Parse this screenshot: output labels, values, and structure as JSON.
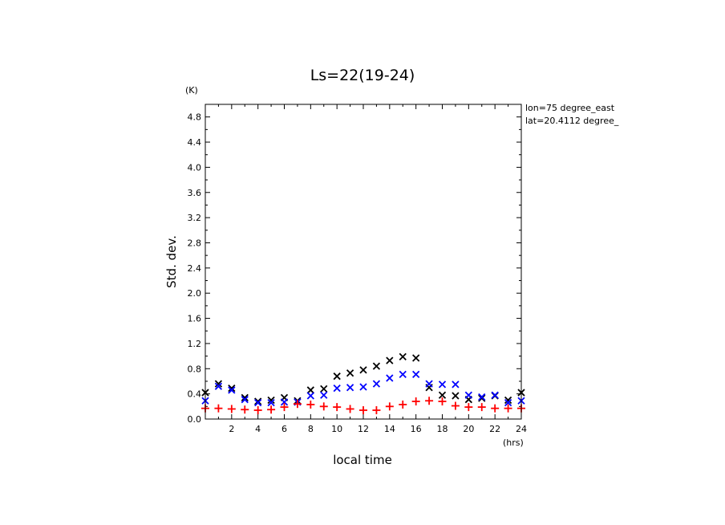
{
  "chart_data": {
    "type": "scatter",
    "title": "Ls=22(19-24)",
    "xlabel": "local time",
    "ylabel": "Std. dev.",
    "x_unit": "(hrs)",
    "y_unit": "(K)",
    "annotations": [
      "lon=75 degree_east",
      "lat=20.4112 degree_"
    ],
    "xlim": [
      0,
      24
    ],
    "ylim": [
      0,
      5.0
    ],
    "x_ticks": [
      2,
      4,
      6,
      8,
      10,
      12,
      14,
      16,
      18,
      20,
      22,
      24
    ],
    "y_ticks": [
      0.0,
      0.4,
      0.8,
      1.2,
      1.6,
      2.0,
      2.4,
      2.8,
      3.2,
      3.6,
      4.0,
      4.4,
      4.8
    ],
    "x": [
      0,
      1,
      2,
      3,
      4,
      5,
      6,
      7,
      8,
      9,
      10,
      11,
      12,
      13,
      14,
      15,
      16,
      17,
      18,
      19,
      20,
      21,
      22,
      23,
      24
    ],
    "series": [
      {
        "marker": "x",
        "color": "#000000",
        "values": [
          0.42,
          0.56,
          0.49,
          0.34,
          0.28,
          0.3,
          0.34,
          0.29,
          0.46,
          0.48,
          0.68,
          0.73,
          0.78,
          0.84,
          0.93,
          0.99,
          0.97,
          0.5,
          0.38,
          0.37,
          0.31,
          0.33,
          0.37,
          0.3,
          0.42
        ]
      },
      {
        "marker": "x",
        "color": "#0000ff",
        "values": [
          0.29,
          0.52,
          0.46,
          0.31,
          0.26,
          0.26,
          0.27,
          0.27,
          0.37,
          0.38,
          0.49,
          0.5,
          0.51,
          0.56,
          0.65,
          0.71,
          0.71,
          0.56,
          0.55,
          0.55,
          0.38,
          0.35,
          0.38,
          0.26,
          0.29
        ]
      },
      {
        "marker": "+",
        "color": "#ff0000",
        "values": [
          0.17,
          0.17,
          0.16,
          0.15,
          0.14,
          0.15,
          0.19,
          0.24,
          0.23,
          0.2,
          0.19,
          0.16,
          0.14,
          0.14,
          0.2,
          0.23,
          0.28,
          0.29,
          0.28,
          0.21,
          0.19,
          0.19,
          0.17,
          0.17,
          0.17
        ]
      }
    ]
  }
}
